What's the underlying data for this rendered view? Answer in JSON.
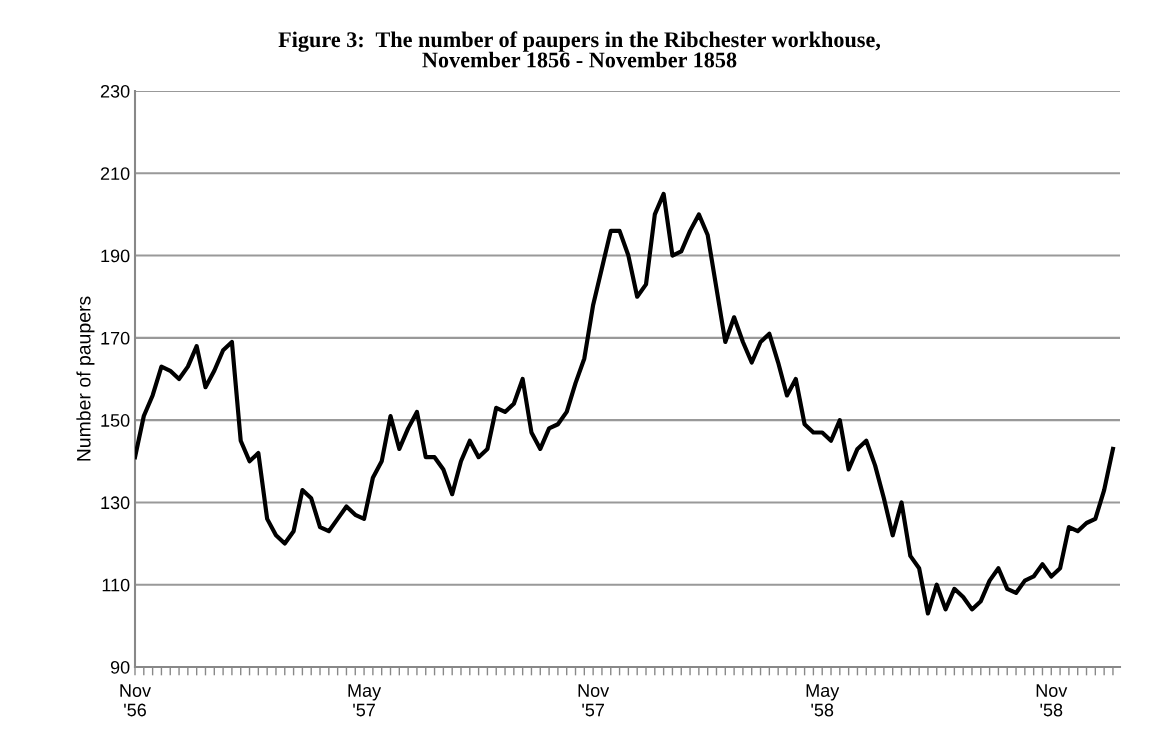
{
  "chart_data": {
    "type": "line",
    "title": "Figure 3:  The number of paupers in the Ribchester workhouse,\nNovember 1856 - November 1858",
    "ylabel": "Number of paupers",
    "categories": [
      "Nov\n'56",
      null,
      null,
      null,
      null,
      null,
      null,
      null,
      null,
      null,
      null,
      null,
      null,
      null,
      null,
      null,
      null,
      null,
      null,
      null,
      null,
      null,
      null,
      null,
      null,
      null,
      "May\n'57",
      null,
      null,
      null,
      null,
      null,
      null,
      null,
      null,
      null,
      null,
      null,
      null,
      null,
      null,
      null,
      null,
      null,
      null,
      null,
      null,
      null,
      null,
      null,
      null,
      null,
      "Nov\n'57",
      null,
      null,
      null,
      null,
      null,
      null,
      null,
      null,
      null,
      null,
      null,
      null,
      null,
      null,
      null,
      null,
      null,
      null,
      null,
      null,
      null,
      null,
      null,
      null,
      null,
      "May\n'58",
      null,
      null,
      null,
      null,
      null,
      null,
      null,
      null,
      null,
      null,
      null,
      null,
      null,
      null,
      null,
      null,
      null,
      null,
      null,
      null,
      null,
      null,
      null,
      null,
      null,
      "Nov\n'58",
      null,
      null,
      null,
      null,
      null,
      null,
      null
    ],
    "series": [
      {
        "color": "#000000",
        "values": [
          141,
          151,
          156,
          163,
          162,
          160,
          163,
          168,
          158,
          162,
          167,
          169,
          145,
          140,
          142,
          126,
          122,
          120,
          123,
          133,
          131,
          124,
          123,
          126,
          129,
          127,
          126,
          136,
          140,
          151,
          143,
          148,
          152,
          141,
          141,
          138,
          132,
          140,
          145,
          141,
          143,
          153,
          152,
          154,
          160,
          147,
          143,
          148,
          149,
          152,
          159,
          165,
          178,
          187,
          196,
          196,
          190,
          180,
          183,
          200,
          205,
          190,
          191,
          196,
          200,
          195,
          182,
          169,
          175,
          169,
          164,
          169,
          171,
          164,
          156,
          160,
          149,
          147,
          147,
          145,
          150,
          138,
          143,
          145,
          139,
          131,
          122,
          130,
          117,
          114,
          103,
          110,
          104,
          109,
          107,
          104,
          106,
          111,
          114,
          109,
          108,
          111,
          112,
          115,
          112,
          114,
          124,
          123,
          125,
          126,
          133,
          143
        ]
      }
    ],
    "ylim": [
      90,
      230
    ],
    "yticks": [
      90,
      110,
      130,
      150,
      170,
      190,
      210,
      230
    ],
    "grid": "y",
    "marker": "none",
    "line_style": "solid"
  }
}
